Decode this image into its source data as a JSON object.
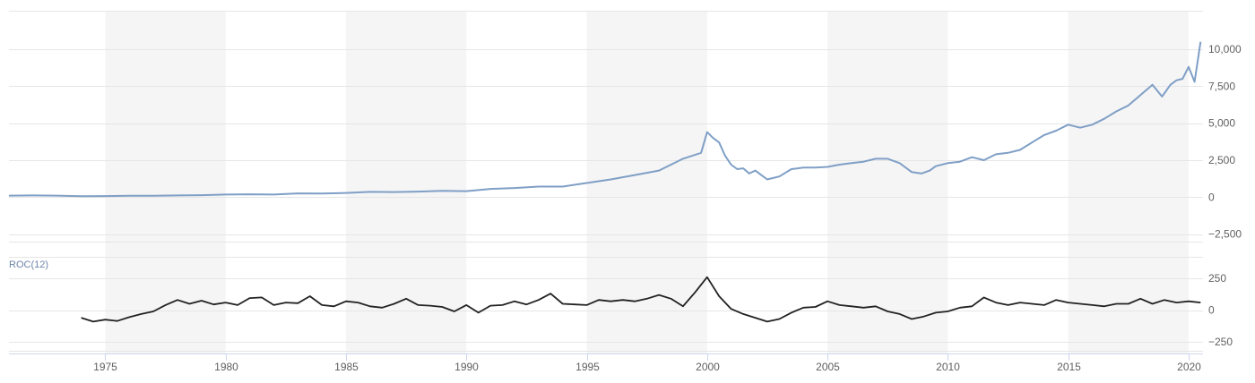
{
  "chart_data": [
    {
      "type": "line",
      "title": "",
      "xlabel": "",
      "ylabel": "",
      "x_range": [
        1971.0,
        2020.6
      ],
      "x_ticks": [
        1975,
        1980,
        1985,
        1990,
        1995,
        2000,
        2005,
        2010,
        2015,
        2020
      ],
      "x_tick_labels": [
        "1975",
        "1980",
        "1985",
        "1990",
        "1995",
        "2000",
        "2005",
        "2010",
        "2015",
        "2020"
      ],
      "ylim": [
        -3000,
        12600
      ],
      "y_ticks": [
        -2500,
        0,
        2500,
        5000,
        7500,
        10000
      ],
      "y_tick_labels": [
        "−2,500",
        "0",
        "2,500",
        "5,000",
        "7,500",
        "10,000"
      ],
      "shaded_bands": [
        [
          1975,
          1980
        ],
        [
          1985,
          1990
        ],
        [
          1995,
          2000
        ],
        [
          2005,
          2010
        ],
        [
          2015,
          2020
        ]
      ],
      "colors": {
        "line": "#7f9fc6",
        "band": "#f5f5f5",
        "grid": "#e6e6e6"
      },
      "series": [
        {
          "x": [
            1971,
            1972,
            1973,
            1974,
            1975,
            1976,
            1977,
            1978,
            1979,
            1980,
            1981,
            1982,
            1983,
            1984,
            1985,
            1986,
            1987,
            1988,
            1989,
            1990,
            1991,
            1992,
            1993,
            1994,
            1995,
            1996,
            1997,
            1998,
            1999,
            1999.75,
            2000.0,
            2000.25,
            2000.5,
            2000.75,
            2001.0,
            2001.25,
            2001.5,
            2001.75,
            2002.0,
            2002.25,
            2002.5,
            2002.75,
            2003.0,
            2003.5,
            2004.0,
            2004.5,
            2005.0,
            2005.5,
            2006.0,
            2006.5,
            2007.0,
            2007.5,
            2008.0,
            2008.5,
            2008.9,
            2009.25,
            2009.5,
            2010.0,
            2010.5,
            2011.0,
            2011.5,
            2012.0,
            2012.5,
            2013.0,
            2013.5,
            2014.0,
            2014.5,
            2015.0,
            2015.5,
            2016.0,
            2016.5,
            2017.0,
            2017.5,
            2018.0,
            2018.5,
            2018.9,
            2019.25,
            2019.5,
            2019.75,
            2020.0,
            2020.25,
            2020.5
          ],
          "y": [
            110,
            120,
            110,
            70,
            80,
            95,
            100,
            120,
            140,
            180,
            200,
            180,
            260,
            250,
            290,
            360,
            350,
            380,
            430,
            410,
            560,
            620,
            720,
            720,
            960,
            1200,
            1500,
            1800,
            2600,
            3000,
            4400,
            4000,
            3700,
            2800,
            2200,
            1900,
            1950,
            1600,
            1800,
            1500,
            1200,
            1300,
            1400,
            1900,
            2000,
            2000,
            2050,
            2200,
            2300,
            2400,
            2600,
            2600,
            2300,
            1700,
            1600,
            1800,
            2100,
            2300,
            2400,
            2700,
            2500,
            2900,
            3000,
            3200,
            3700,
            4200,
            4500,
            4900,
            4700,
            4900,
            5300,
            5800,
            6200,
            6900,
            7600,
            6800,
            7600,
            7900,
            8000,
            8800,
            7800,
            10500
          ]
        }
      ]
    },
    {
      "type": "line",
      "title": "ROC(12)",
      "xlabel": "",
      "ylabel": "",
      "x_range": [
        1971.0,
        2020.6
      ],
      "ylim": [
        -320,
        420
      ],
      "y_ticks": [
        -250,
        0,
        250
      ],
      "y_tick_labels": [
        "−250",
        "0",
        "250"
      ],
      "colors": {
        "line": "#222222"
      },
      "series": [
        {
          "x": [
            1974.0,
            1974.5,
            1975.0,
            1975.5,
            1976.0,
            1976.5,
            1977.0,
            1977.5,
            1978.0,
            1978.5,
            1979.0,
            1979.5,
            1980.0,
            1980.5,
            1981.0,
            1981.5,
            1982.0,
            1982.5,
            1983.0,
            1983.5,
            1984.0,
            1984.5,
            1985.0,
            1985.5,
            1986.0,
            1986.5,
            1987.0,
            1987.5,
            1988.0,
            1988.5,
            1989.0,
            1989.5,
            1990.0,
            1990.5,
            1991.0,
            1991.5,
            1992.0,
            1992.5,
            1993.0,
            1993.5,
            1994.0,
            1994.5,
            1995.0,
            1995.5,
            1996.0,
            1996.5,
            1997.0,
            1997.5,
            1998.0,
            1998.5,
            1999.0,
            1999.5,
            2000.0,
            2000.5,
            2001.0,
            2001.5,
            2002.0,
            2002.5,
            2003.0,
            2003.5,
            2004.0,
            2004.5,
            2005.0,
            2005.5,
            2006.0,
            2006.5,
            2007.0,
            2007.5,
            2008.0,
            2008.5,
            2009.0,
            2009.5,
            2010.0,
            2010.5,
            2011.0,
            2011.5,
            2012.0,
            2012.5,
            2013.0,
            2013.5,
            2014.0,
            2014.5,
            2015.0,
            2015.5,
            2016.0,
            2016.5,
            2017.0,
            2017.5,
            2018.0,
            2018.5,
            2019.0,
            2019.5,
            2020.0,
            2020.5
          ],
          "y": [
            -60,
            -90,
            -75,
            -85,
            -55,
            -30,
            -10,
            40,
            80,
            50,
            75,
            45,
            60,
            40,
            95,
            100,
            40,
            60,
            55,
            110,
            40,
            30,
            70,
            60,
            30,
            20,
            50,
            90,
            40,
            35,
            25,
            -10,
            40,
            -20,
            35,
            40,
            70,
            45,
            80,
            130,
            50,
            45,
            40,
            80,
            70,
            80,
            70,
            90,
            120,
            90,
            30,
            140,
            260,
            110,
            10,
            -30,
            -60,
            -90,
            -70,
            -20,
            20,
            25,
            70,
            40,
            30,
            20,
            30,
            -10,
            -30,
            -70,
            -50,
            -20,
            -10,
            20,
            30,
            100,
            60,
            40,
            60,
            50,
            40,
            80,
            60,
            50,
            40,
            30,
            50,
            50,
            90,
            50,
            80,
            60,
            70,
            60
          ]
        }
      ]
    }
  ],
  "indicator_label": "ROC(12)"
}
